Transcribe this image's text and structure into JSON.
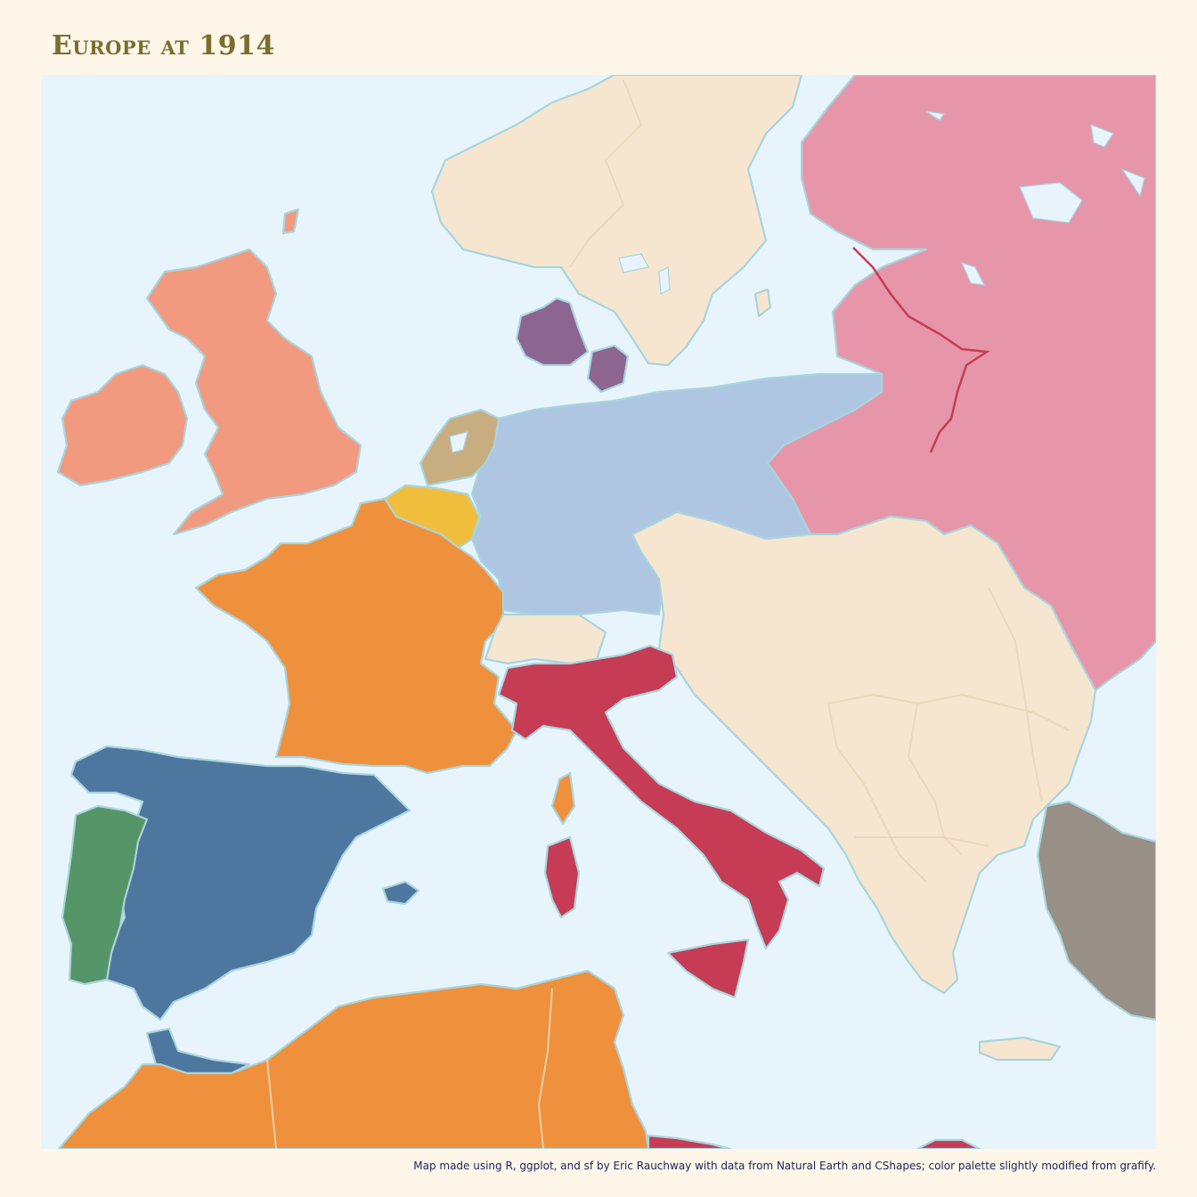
{
  "title": "Europe at 1914",
  "caption": "Map made using R, ggplot, and sf by Eric Rauchway with data from Natural Earth and CShapes; color palette slightly modified from grafify.",
  "colors": {
    "background": "#fdf6e9",
    "sea": "#e8f4fb",
    "coast": "#a8d5de",
    "title": "#7b6d2e",
    "caption": "#1f2560",
    "united_kingdom": "#f19a80",
    "france": "#ef913c",
    "spain": "#4e77a0",
    "portugal": "#569568",
    "italy": "#c53c54",
    "german_empire": "#aec6e2",
    "netherlands": "#c8ad80",
    "belgium": "#f0be3c",
    "denmark": "#8c6690",
    "russian_empire": "#e796aa",
    "ottoman_empire": "#988f86",
    "neutral_beige": "#f6e6d0",
    "finland_border": "#c53c54"
  }
}
